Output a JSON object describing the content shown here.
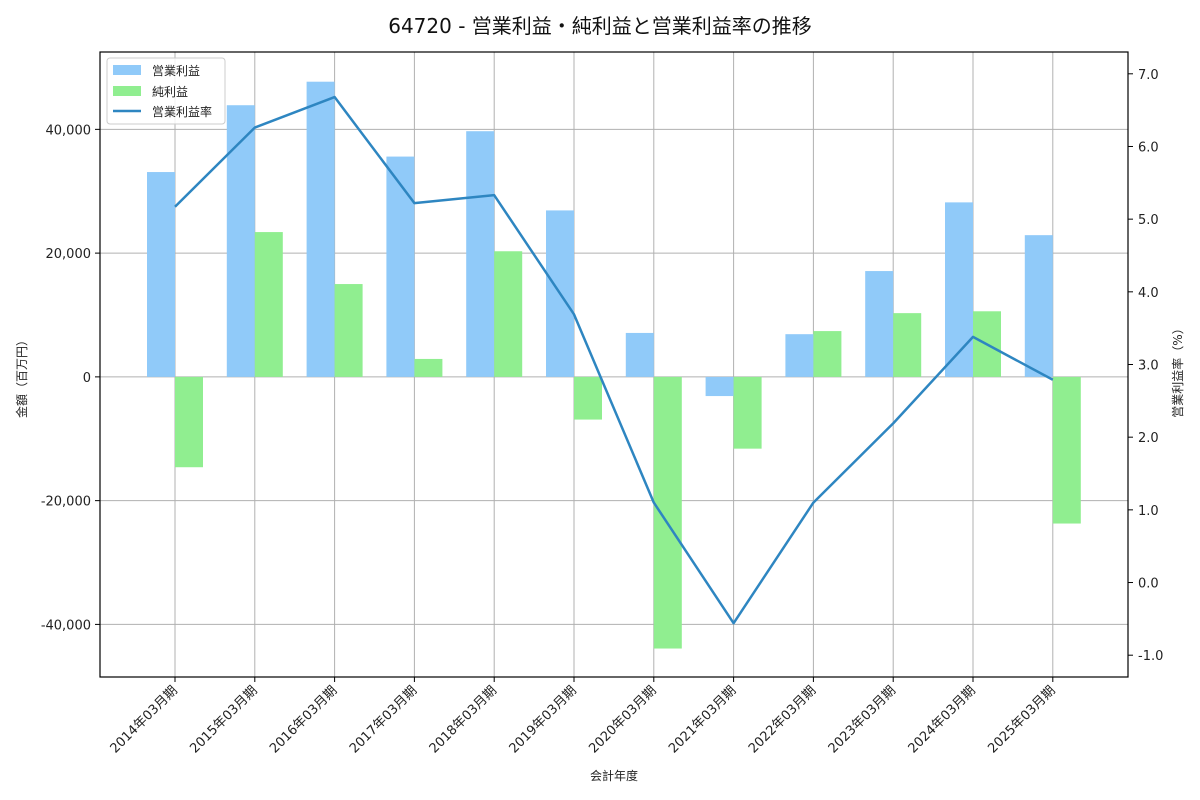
{
  "title": "64720 - 営業利益・純利益と営業利益率の推移",
  "chart_data": {
    "type": "bar+line",
    "title": "64720 - 営業利益・純利益と営業利益率の推移",
    "xlabel": "会計年度",
    "ylabel": "金額（百万円）",
    "y2label": "営業利益率（%）",
    "categories": [
      "2014年03月期",
      "2015年03月期",
      "2016年03月期",
      "2017年03月期",
      "2018年03月期",
      "2019年03月期",
      "2020年03月期",
      "2021年03月期",
      "2022年03月期",
      "2023年03月期",
      "2024年03月期",
      "2025年03月期"
    ],
    "series": [
      {
        "name": "営業利益",
        "type": "bar",
        "axis": "left",
        "color": "#90caf9",
        "values": [
          33100,
          43900,
          47700,
          35600,
          39700,
          26900,
          7100,
          -3100,
          6900,
          17100,
          28200,
          22900
        ]
      },
      {
        "name": "純利益",
        "type": "bar",
        "axis": "left",
        "color": "#90ee90",
        "values": [
          -14600,
          23400,
          15000,
          2900,
          20300,
          -6900,
          -43900,
          -11600,
          7400,
          10300,
          10600,
          -23700
        ]
      },
      {
        "name": "営業利益率",
        "type": "line",
        "axis": "right",
        "color": "#2e86c1",
        "values": [
          5.17,
          6.26,
          6.68,
          5.22,
          5.33,
          3.69,
          1.1,
          -0.56,
          1.1,
          2.19,
          3.38,
          2.79
        ]
      }
    ],
    "ylim": [
      -48500,
      52500
    ],
    "y2lim": [
      -1.3,
      7.3
    ],
    "yticks": [
      -40000,
      -20000,
      0,
      20000,
      40000
    ],
    "ytick_labels": [
      "-40,000",
      "-20,000",
      "0",
      "20,000",
      "40,000"
    ],
    "y2ticks": [
      -1.0,
      0.0,
      1.0,
      2.0,
      3.0,
      4.0,
      5.0,
      6.0,
      7.0
    ],
    "y2tick_labels": [
      "-1.0",
      "0.0",
      "1.0",
      "2.0",
      "3.0",
      "4.0",
      "5.0",
      "6.0",
      "7.0"
    ],
    "grid": true,
    "legend_position": "upper left"
  }
}
